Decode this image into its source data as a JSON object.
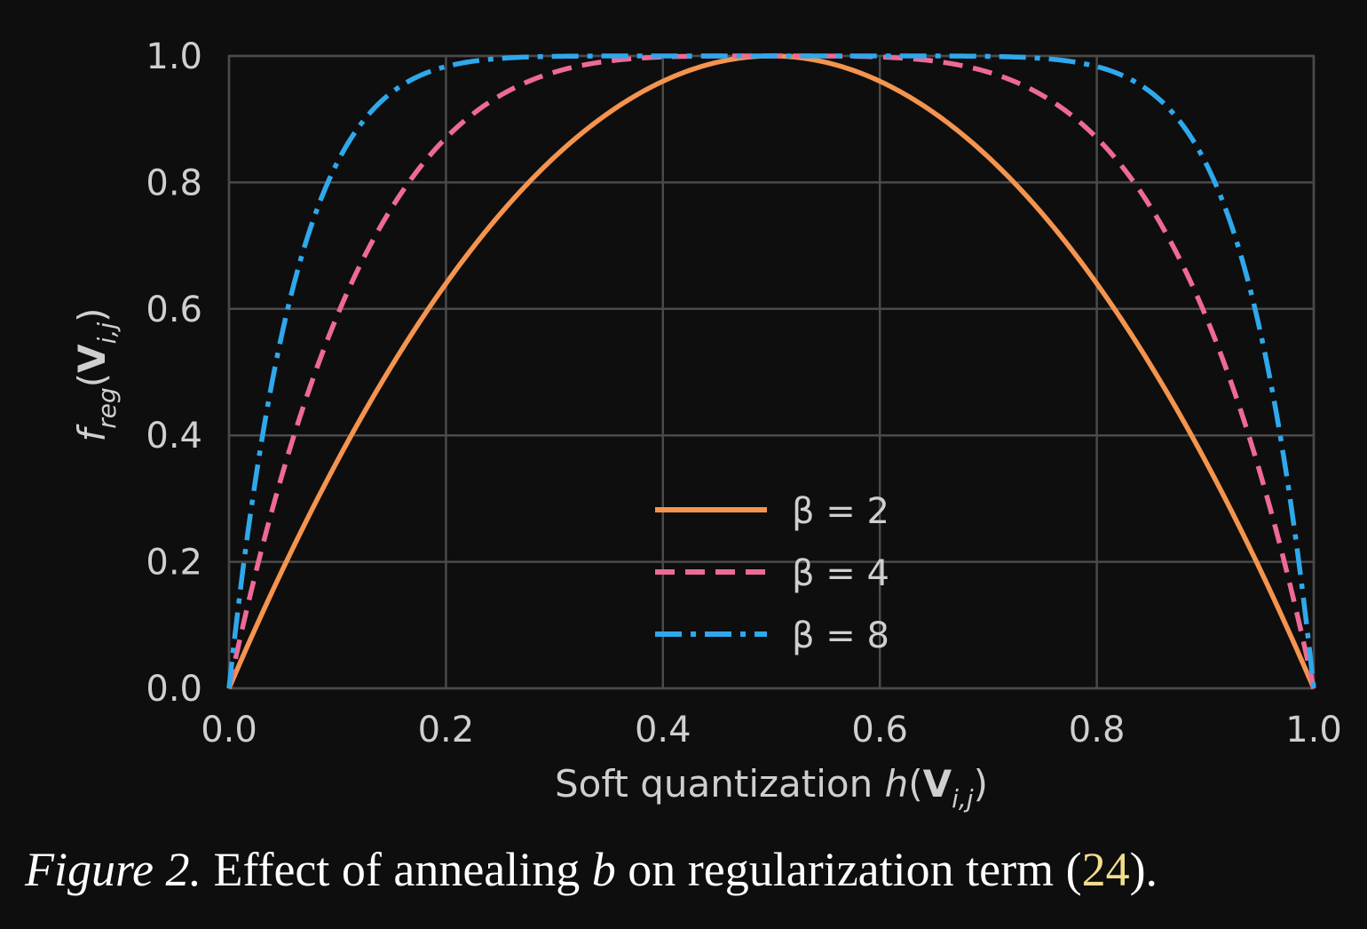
{
  "chart_data": {
    "type": "line",
    "title": "",
    "xlabel": "Soft quantization h(V_{i,j})",
    "ylabel": "f_reg(V_{i,j})",
    "xlim": [
      0.0,
      1.0
    ],
    "ylim": [
      0.0,
      1.0
    ],
    "x_ticks": [
      "0.0",
      "0.2",
      "0.4",
      "0.6",
      "0.8",
      "1.0"
    ],
    "y_ticks": [
      "0.0",
      "0.2",
      "0.4",
      "0.6",
      "0.8",
      "1.0"
    ],
    "grid": true,
    "legend_position": "lower-center",
    "series": [
      {
        "name": "β = 2",
        "color": "#f4944e",
        "linestyle": "solid",
        "x": [
          0.0,
          0.05,
          0.1,
          0.15,
          0.2,
          0.25,
          0.3,
          0.35,
          0.4,
          0.45,
          0.5,
          0.55,
          0.6,
          0.65,
          0.7,
          0.75,
          0.8,
          0.85,
          0.9,
          0.95,
          1.0
        ],
        "y": [
          0.0,
          0.19,
          0.36,
          0.51,
          0.64,
          0.75,
          0.84,
          0.91,
          0.96,
          0.99,
          1.0,
          0.99,
          0.96,
          0.91,
          0.84,
          0.75,
          0.64,
          0.51,
          0.36,
          0.19,
          0.0
        ]
      },
      {
        "name": "β = 4",
        "color": "#ee6a96",
        "linestyle": "dashed",
        "x": [
          0.0,
          0.05,
          0.1,
          0.15,
          0.2,
          0.25,
          0.3,
          0.35,
          0.4,
          0.45,
          0.5,
          0.55,
          0.6,
          0.65,
          0.7,
          0.75,
          0.8,
          0.85,
          0.9,
          0.95,
          1.0
        ],
        "y": [
          0.0,
          0.34,
          0.59,
          0.76,
          0.87,
          0.94,
          0.97,
          0.99,
          1.0,
          1.0,
          1.0,
          1.0,
          1.0,
          0.99,
          0.97,
          0.94,
          0.87,
          0.76,
          0.59,
          0.34,
          0.0
        ]
      },
      {
        "name": "β = 8",
        "color": "#2fa8ec",
        "linestyle": "dashdot",
        "x": [
          0.0,
          0.05,
          0.1,
          0.15,
          0.2,
          0.25,
          0.3,
          0.35,
          0.4,
          0.45,
          0.5,
          0.55,
          0.6,
          0.65,
          0.7,
          0.75,
          0.8,
          0.85,
          0.9,
          0.95,
          1.0
        ],
        "y": [
          0.0,
          0.57,
          0.83,
          0.94,
          0.98,
          0.99,
          1.0,
          1.0,
          1.0,
          1.0,
          1.0,
          1.0,
          1.0,
          1.0,
          1.0,
          0.99,
          0.98,
          0.94,
          0.83,
          0.57,
          0.0
        ]
      }
    ]
  },
  "caption": {
    "lead": "Figure 2.",
    "text_before": " Effect of annealing ",
    "symbol": "b",
    "text_after": " on regularization term (",
    "ref": "24",
    "close": ")."
  }
}
